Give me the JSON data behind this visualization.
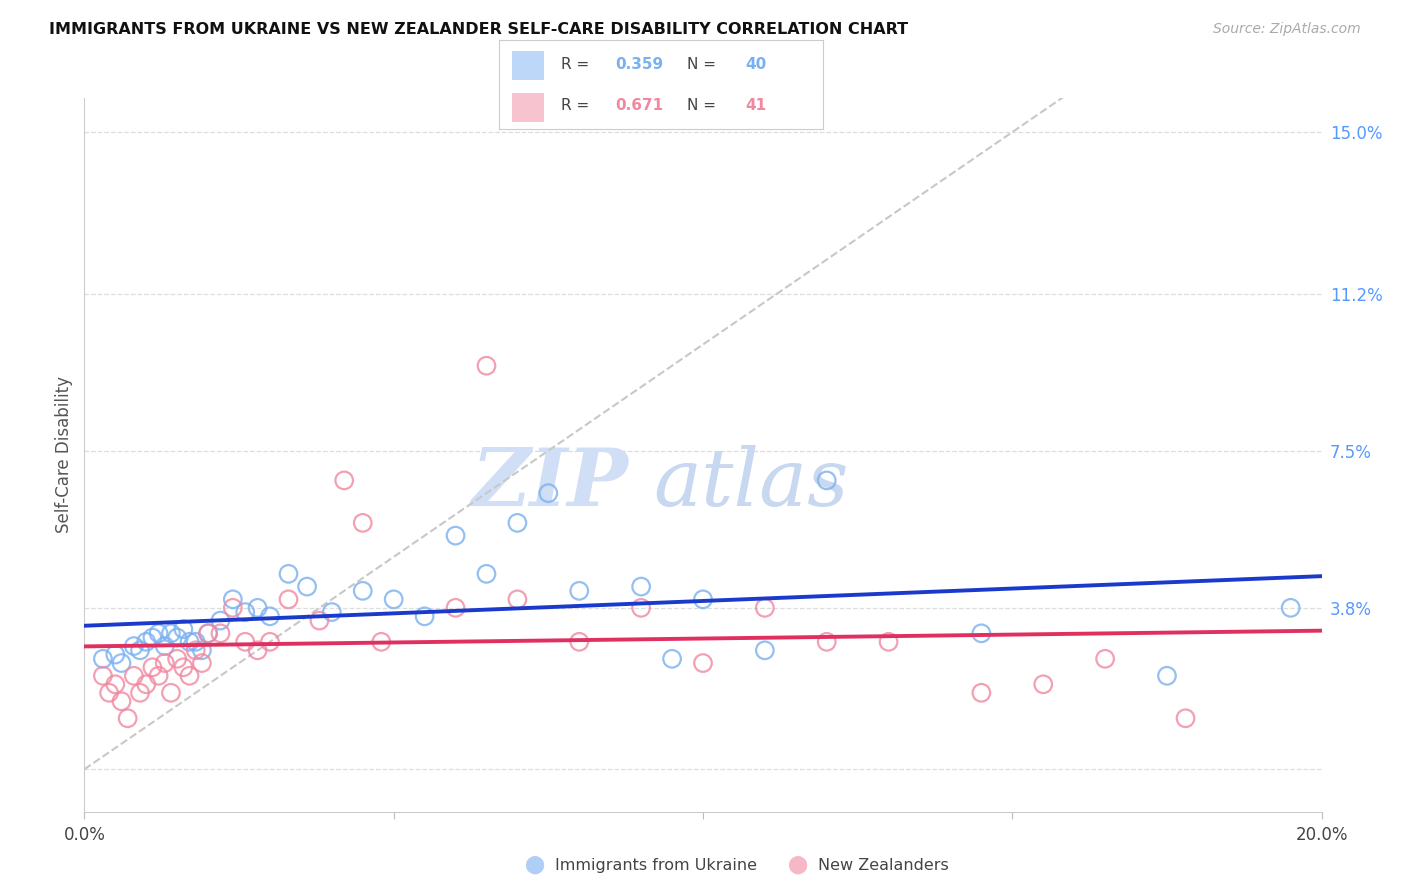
{
  "title": "IMMIGRANTS FROM UKRAINE VS NEW ZEALANDER SELF-CARE DISABILITY CORRELATION CHART",
  "source": "Source: ZipAtlas.com",
  "ylabel_label": "Self-Care Disability",
  "xmin": 0.0,
  "xmax": 0.2,
  "ymin": -0.01,
  "ymax": 0.158,
  "ukraine_color": "#7ab0f0",
  "nz_color": "#f088a0",
  "trendline_ukraine_color": "#1a3acc",
  "trendline_nz_color": "#e03060",
  "diagonal_color": "#c8c8c8",
  "watermark_zip": "ZIP",
  "watermark_atlas": "atlas",
  "yticks": [
    0.0,
    0.038,
    0.075,
    0.112,
    0.15
  ],
  "ytick_labels": [
    "",
    "3.8%",
    "7.5%",
    "11.2%",
    "15.0%"
  ],
  "ukraine_R": "0.359",
  "ukraine_N": "40",
  "nz_R": "0.671",
  "nz_N": "41",
  "ukraine_x": [
    0.003,
    0.005,
    0.006,
    0.008,
    0.009,
    0.01,
    0.011,
    0.012,
    0.013,
    0.014,
    0.015,
    0.016,
    0.017,
    0.018,
    0.019,
    0.02,
    0.022,
    0.024,
    0.026,
    0.028,
    0.03,
    0.033,
    0.036,
    0.04,
    0.045,
    0.05,
    0.055,
    0.06,
    0.065,
    0.07,
    0.075,
    0.08,
    0.09,
    0.095,
    0.1,
    0.11,
    0.12,
    0.145,
    0.175,
    0.195
  ],
  "ukraine_y": [
    0.026,
    0.027,
    0.025,
    0.029,
    0.028,
    0.03,
    0.031,
    0.032,
    0.029,
    0.032,
    0.031,
    0.033,
    0.03,
    0.03,
    0.028,
    0.032,
    0.035,
    0.04,
    0.037,
    0.038,
    0.036,
    0.046,
    0.043,
    0.037,
    0.042,
    0.04,
    0.036,
    0.055,
    0.046,
    0.058,
    0.065,
    0.042,
    0.043,
    0.026,
    0.04,
    0.028,
    0.068,
    0.032,
    0.022,
    0.038
  ],
  "nz_x": [
    0.003,
    0.004,
    0.005,
    0.006,
    0.007,
    0.008,
    0.009,
    0.01,
    0.011,
    0.012,
    0.013,
    0.014,
    0.015,
    0.016,
    0.017,
    0.018,
    0.019,
    0.02,
    0.022,
    0.024,
    0.026,
    0.028,
    0.03,
    0.033,
    0.038,
    0.042,
    0.045,
    0.048,
    0.06,
    0.065,
    0.07,
    0.08,
    0.09,
    0.1,
    0.11,
    0.12,
    0.13,
    0.145,
    0.155,
    0.165,
    0.178
  ],
  "nz_y": [
    0.022,
    0.018,
    0.02,
    0.016,
    0.012,
    0.022,
    0.018,
    0.02,
    0.024,
    0.022,
    0.025,
    0.018,
    0.026,
    0.024,
    0.022,
    0.028,
    0.025,
    0.032,
    0.032,
    0.038,
    0.03,
    0.028,
    0.03,
    0.04,
    0.035,
    0.068,
    0.058,
    0.03,
    0.038,
    0.095,
    0.04,
    0.03,
    0.038,
    0.025,
    0.038,
    0.03,
    0.03,
    0.018,
    0.02,
    0.026,
    0.012
  ]
}
